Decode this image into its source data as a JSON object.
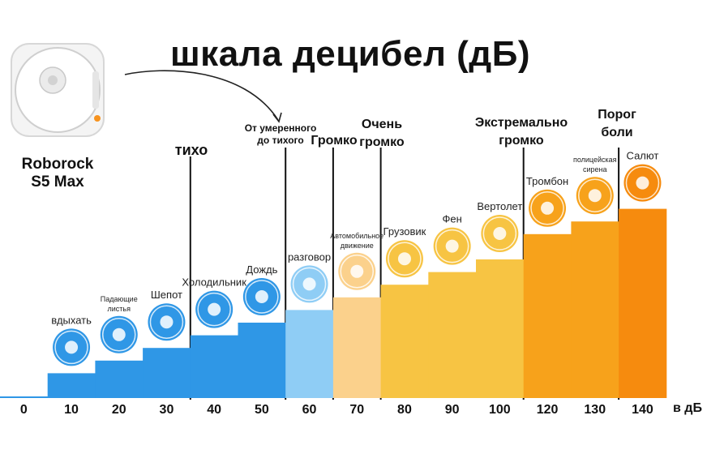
{
  "title": "шкала децибел (дБ)",
  "robot": {
    "name_line1": "Roborock",
    "name_line2": "S5 Max"
  },
  "categories": {
    "quiet": "тихо",
    "moderate_line1": "От умеренного",
    "moderate_line2": "до тихого",
    "loud": "Громко",
    "very_loud_line1": "Очень",
    "very_loud_line2": "громко",
    "extreme_line1": "Экстремально",
    "extreme_line2": "громко",
    "pain_line1": "Порог",
    "pain_line2": "боли"
  },
  "axis_unit": "в дБ",
  "colors": {
    "blue": "#2f97e6",
    "light_blue": "#8fcdf5",
    "peach": "#fbd18c",
    "yellow": "#f7c443",
    "orange": "#f7a21b",
    "deep_orange": "#f68b0e",
    "divider": "#111111"
  },
  "chart_data": {
    "type": "bar",
    "categories": [
      "0",
      "10",
      "20",
      "30",
      "40",
      "50",
      "60",
      "70",
      "80",
      "90",
      "100",
      "120",
      "130",
      "140"
    ],
    "values": [
      0,
      10,
      20,
      30,
      40,
      50,
      60,
      70,
      80,
      90,
      100,
      120,
      130,
      140
    ],
    "labels": [
      {
        "text": "",
        "icon": ""
      },
      {
        "text": "вдыхать",
        "icon": "lungs-icon"
      },
      {
        "text": "Падающие листья",
        "icon": "leaves-icon"
      },
      {
        "text": "Шепот",
        "icon": "whisper-icon"
      },
      {
        "text": "Холодильник",
        "icon": "fridge-icon"
      },
      {
        "text": "Дождь",
        "icon": "rain-icon"
      },
      {
        "text": "разговор",
        "icon": "chat-icon"
      },
      {
        "text": "Автомобильное движение",
        "icon": "car-icon"
      },
      {
        "text": "Грузовик",
        "icon": "truck-icon"
      },
      {
        "text": "Фен",
        "icon": "hairdryer-icon"
      },
      {
        "text": "Вертолет",
        "icon": "helicopter-icon"
      },
      {
        "text": "Тромбон",
        "icon": "trombone-icon"
      },
      {
        "text": "полицейская сирена",
        "icon": "police-car-icon"
      },
      {
        "text": "Салют",
        "icon": "fireworks-icon"
      }
    ],
    "bar_colors": [
      "#2f97e6",
      "#2f97e6",
      "#2f97e6",
      "#2f97e6",
      "#2f97e6",
      "#2f97e6",
      "#8fcdf5",
      "#fbd18c",
      "#f7c443",
      "#f7c443",
      "#f7c443",
      "#f7a21b",
      "#f7a21b",
      "#f68b0e"
    ],
    "xlabel": "в дБ",
    "ylim": [
      0,
      140
    ],
    "grid": false,
    "legend": "none"
  }
}
